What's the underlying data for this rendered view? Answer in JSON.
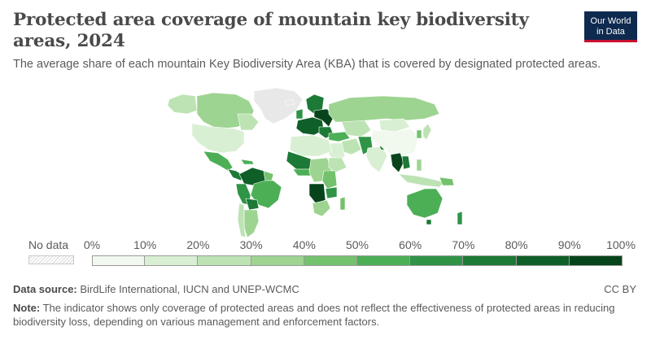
{
  "header": {
    "title": "Protected area coverage of mountain key biodiversity areas, 2024",
    "subtitle": "The average share of each mountain Key Biodiversity Area (KBA) that is covered by designated protected areas.",
    "logo_line1": "Our World",
    "logo_line2": "in Data"
  },
  "legend": {
    "no_data_label": "No data",
    "bins": [
      {
        "label": "0%",
        "color": "#f1f9ef"
      },
      {
        "label": "10%",
        "color": "#d9efd3"
      },
      {
        "label": "20%",
        "color": "#bde3b4"
      },
      {
        "label": "30%",
        "color": "#9dd491"
      },
      {
        "label": "40%",
        "color": "#74c26e"
      },
      {
        "label": "50%",
        "color": "#4caf56"
      },
      {
        "label": "60%",
        "color": "#2f9446"
      },
      {
        "label": "70%",
        "color": "#1c7a36"
      },
      {
        "label": "80%",
        "color": "#0f5f28"
      },
      {
        "label": "90%",
        "color": "#07441c"
      }
    ],
    "last_label": "100%"
  },
  "footer": {
    "source_label": "Data source:",
    "source_text": "BirdLife International, IUCN and UNEP-WCMC",
    "license": "CC BY",
    "note_label": "Note:",
    "note_text": "The indicator shows only coverage of protected areas and does not reflect the effectiveness of protected areas in reducing biodiversity loss, depending on various management and enforcement factors."
  },
  "map_colors": {
    "no_data": "#e8e8e8",
    "border": "#ffffff"
  }
}
